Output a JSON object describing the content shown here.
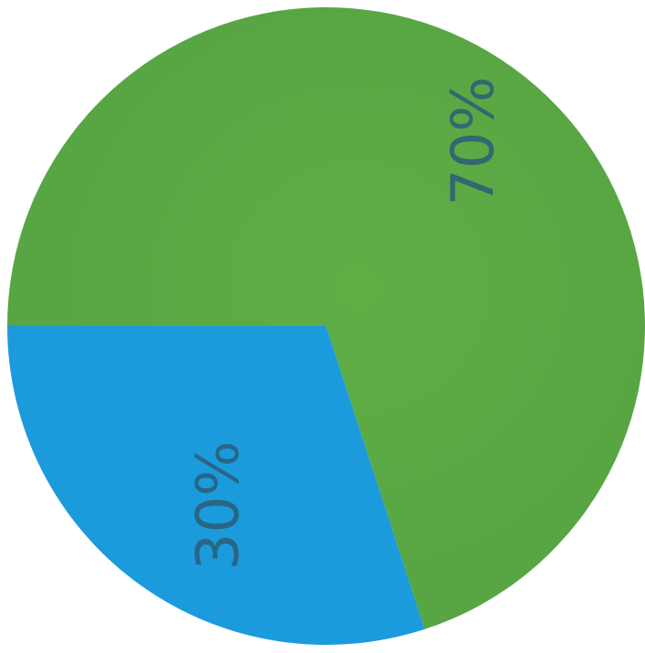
{
  "chart_data": {
    "type": "pie",
    "slices": [
      {
        "label": "70%",
        "value": 70,
        "color": "#5aa743"
      },
      {
        "label": "30%",
        "value": 30,
        "color": "#1b9bdc"
      }
    ],
    "title": "",
    "legend": "none"
  }
}
